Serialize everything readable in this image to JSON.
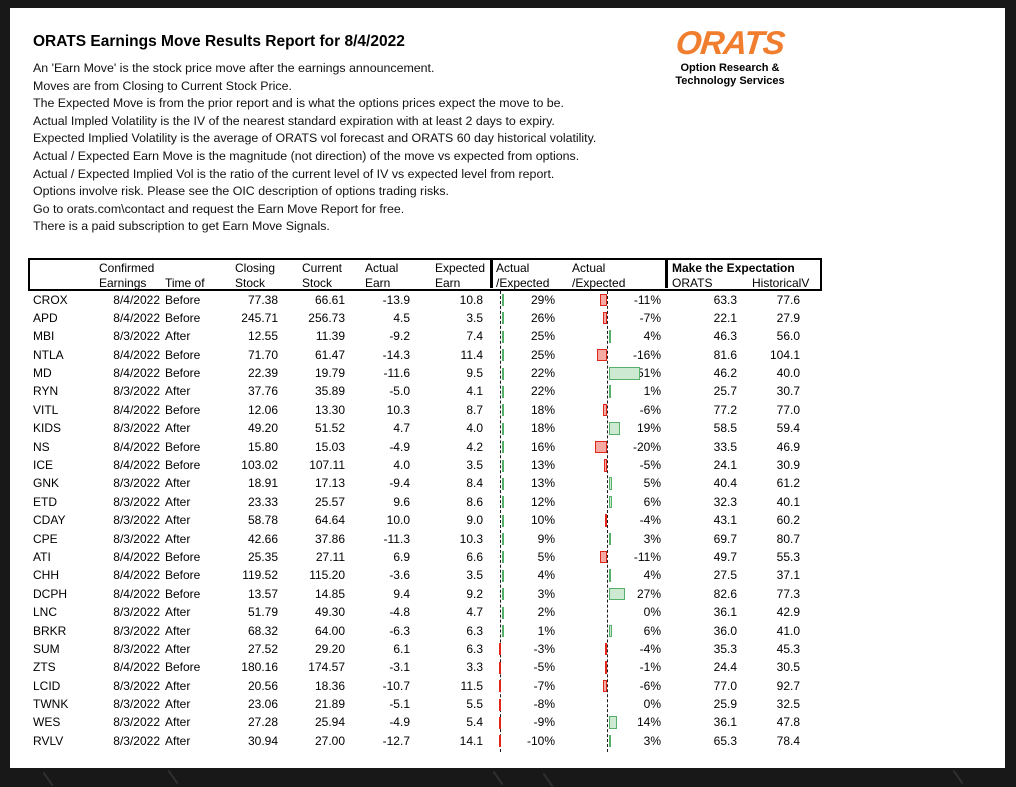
{
  "page": {
    "title": "ORATS Earnings Move Results Report for 8/4/2022",
    "description_lines": [
      "An 'Earn Move' is the stock price move after the earnings announcement.",
      "Moves are from Closing to Current Stock Price.",
      "The Expected Move is from the prior report and is what the options prices expect the move to be.",
      "Actual Impled Volatility is the IV of the nearest standard expiration with at least 2 days to expiry.",
      "Expected Implied Volatility is the average of ORATS vol forecast and ORATS 60 day historical volatility.",
      "Actual / Expected Earn Move is the magnitude (not direction) of the move vs expected from options.",
      "Actual / Expected Implied Vol is the ratio of the current level of IV vs expected level from report.",
      "Options involve risk. Please see the OIC description of options trading risks.",
      "Go to orats.com\\contact and request the Earn Move Report for free.",
      "There is a paid subscription to get Earn Move Signals."
    ]
  },
  "logo": {
    "wordmark": "ORATS",
    "subtitle_line1": "Option Research &",
    "subtitle_line2": "Technology Services"
  },
  "colors": {
    "logo_orange": "#F07E2E",
    "bar_green_border": "#55B169",
    "bar_green_fill": "#CDE9D2",
    "bar_red_border": "#E1251B",
    "bar_red_fill": "#F5ABA4"
  },
  "table": {
    "headers": {
      "confirmed": "Confirmed",
      "earnings": "Earnings",
      "time_of": "Time of",
      "closing": "Closing",
      "current": "Current",
      "actual": "Actual",
      "expected": "Expected",
      "stock": "Stock",
      "earn": "Earn",
      "actual_expected_line1": "Actual",
      "actual_expected_line2": "/Expected",
      "make_expectation": "Make the Expectation",
      "orats": "ORATS",
      "historical": "HistoricalV"
    },
    "rows": [
      {
        "ticker": "CROX",
        "date": "8/4/2022",
        "time": "Before",
        "closing": "77.38",
        "current": "66.61",
        "actual_earn": "-13.9",
        "expected_earn": "10.8",
        "move_vs_expected_pct": 29,
        "iv_vs_expected_pct": -11,
        "orats": "63.3",
        "historical": "77.6"
      },
      {
        "ticker": "APD",
        "date": "8/4/2022",
        "time": "Before",
        "closing": "245.71",
        "current": "256.73",
        "actual_earn": "4.5",
        "expected_earn": "3.5",
        "move_vs_expected_pct": 26,
        "iv_vs_expected_pct": -7,
        "orats": "22.1",
        "historical": "27.9"
      },
      {
        "ticker": "MBI",
        "date": "8/3/2022",
        "time": "After",
        "closing": "12.55",
        "current": "11.39",
        "actual_earn": "-9.2",
        "expected_earn": "7.4",
        "move_vs_expected_pct": 25,
        "iv_vs_expected_pct": 4,
        "orats": "46.3",
        "historical": "56.0"
      },
      {
        "ticker": "NTLA",
        "date": "8/4/2022",
        "time": "Before",
        "closing": "71.70",
        "current": "61.47",
        "actual_earn": "-14.3",
        "expected_earn": "11.4",
        "move_vs_expected_pct": 25,
        "iv_vs_expected_pct": -16,
        "orats": "81.6",
        "historical": "104.1"
      },
      {
        "ticker": "MD",
        "date": "8/4/2022",
        "time": "Before",
        "closing": "22.39",
        "current": "19.79",
        "actual_earn": "-11.6",
        "expected_earn": "9.5",
        "move_vs_expected_pct": 22,
        "iv_vs_expected_pct": 51,
        "orats": "46.2",
        "historical": "40.0"
      },
      {
        "ticker": "RYN",
        "date": "8/3/2022",
        "time": "After",
        "closing": "37.76",
        "current": "35.89",
        "actual_earn": "-5.0",
        "expected_earn": "4.1",
        "move_vs_expected_pct": 22,
        "iv_vs_expected_pct": 1,
        "orats": "25.7",
        "historical": "30.7"
      },
      {
        "ticker": "VITL",
        "date": "8/4/2022",
        "time": "Before",
        "closing": "12.06",
        "current": "13.30",
        "actual_earn": "10.3",
        "expected_earn": "8.7",
        "move_vs_expected_pct": 18,
        "iv_vs_expected_pct": -6,
        "orats": "77.2",
        "historical": "77.0"
      },
      {
        "ticker": "KIDS",
        "date": "8/3/2022",
        "time": "After",
        "closing": "49.20",
        "current": "51.52",
        "actual_earn": "4.7",
        "expected_earn": "4.0",
        "move_vs_expected_pct": 18,
        "iv_vs_expected_pct": 19,
        "orats": "58.5",
        "historical": "59.4"
      },
      {
        "ticker": "NS",
        "date": "8/4/2022",
        "time": "Before",
        "closing": "15.80",
        "current": "15.03",
        "actual_earn": "-4.9",
        "expected_earn": "4.2",
        "move_vs_expected_pct": 16,
        "iv_vs_expected_pct": -20,
        "orats": "33.5",
        "historical": "46.9"
      },
      {
        "ticker": "ICE",
        "date": "8/4/2022",
        "time": "Before",
        "closing": "103.02",
        "current": "107.11",
        "actual_earn": "4.0",
        "expected_earn": "3.5",
        "move_vs_expected_pct": 13,
        "iv_vs_expected_pct": -5,
        "orats": "24.1",
        "historical": "30.9"
      },
      {
        "ticker": "GNK",
        "date": "8/3/2022",
        "time": "After",
        "closing": "18.91",
        "current": "17.13",
        "actual_earn": "-9.4",
        "expected_earn": "8.4",
        "move_vs_expected_pct": 13,
        "iv_vs_expected_pct": 5,
        "orats": "40.4",
        "historical": "61.2"
      },
      {
        "ticker": "ETD",
        "date": "8/3/2022",
        "time": "After",
        "closing": "23.33",
        "current": "25.57",
        "actual_earn": "9.6",
        "expected_earn": "8.6",
        "move_vs_expected_pct": 12,
        "iv_vs_expected_pct": 6,
        "orats": "32.3",
        "historical": "40.1"
      },
      {
        "ticker": "CDAY",
        "date": "8/3/2022",
        "time": "After",
        "closing": "58.78",
        "current": "64.64",
        "actual_earn": "10.0",
        "expected_earn": "9.0",
        "move_vs_expected_pct": 10,
        "iv_vs_expected_pct": -4,
        "orats": "43.1",
        "historical": "60.2"
      },
      {
        "ticker": "CPE",
        "date": "8/3/2022",
        "time": "After",
        "closing": "42.66",
        "current": "37.86",
        "actual_earn": "-11.3",
        "expected_earn": "10.3",
        "move_vs_expected_pct": 9,
        "iv_vs_expected_pct": 3,
        "orats": "69.7",
        "historical": "80.7"
      },
      {
        "ticker": "ATI",
        "date": "8/4/2022",
        "time": "Before",
        "closing": "25.35",
        "current": "27.11",
        "actual_earn": "6.9",
        "expected_earn": "6.6",
        "move_vs_expected_pct": 5,
        "iv_vs_expected_pct": -11,
        "orats": "49.7",
        "historical": "55.3"
      },
      {
        "ticker": "CHH",
        "date": "8/4/2022",
        "time": "Before",
        "closing": "119.52",
        "current": "115.20",
        "actual_earn": "-3.6",
        "expected_earn": "3.5",
        "move_vs_expected_pct": 4,
        "iv_vs_expected_pct": 4,
        "orats": "27.5",
        "historical": "37.1"
      },
      {
        "ticker": "DCPH",
        "date": "8/4/2022",
        "time": "Before",
        "closing": "13.57",
        "current": "14.85",
        "actual_earn": "9.4",
        "expected_earn": "9.2",
        "move_vs_expected_pct": 3,
        "iv_vs_expected_pct": 27,
        "orats": "82.6",
        "historical": "77.3"
      },
      {
        "ticker": "LNC",
        "date": "8/3/2022",
        "time": "After",
        "closing": "51.79",
        "current": "49.30",
        "actual_earn": "-4.8",
        "expected_earn": "4.7",
        "move_vs_expected_pct": 2,
        "iv_vs_expected_pct": 0,
        "orats": "36.1",
        "historical": "42.9"
      },
      {
        "ticker": "BRKR",
        "date": "8/3/2022",
        "time": "After",
        "closing": "68.32",
        "current": "64.00",
        "actual_earn": "-6.3",
        "expected_earn": "6.3",
        "move_vs_expected_pct": 1,
        "iv_vs_expected_pct": 6,
        "orats": "36.0",
        "historical": "41.0"
      },
      {
        "ticker": "SUM",
        "date": "8/3/2022",
        "time": "After",
        "closing": "27.52",
        "current": "29.20",
        "actual_earn": "6.1",
        "expected_earn": "6.3",
        "move_vs_expected_pct": -3,
        "iv_vs_expected_pct": -4,
        "orats": "35.3",
        "historical": "45.3"
      },
      {
        "ticker": "ZTS",
        "date": "8/4/2022",
        "time": "Before",
        "closing": "180.16",
        "current": "174.57",
        "actual_earn": "-3.1",
        "expected_earn": "3.3",
        "move_vs_expected_pct": -5,
        "iv_vs_expected_pct": -1,
        "orats": "24.4",
        "historical": "30.5"
      },
      {
        "ticker": "LCID",
        "date": "8/3/2022",
        "time": "After",
        "closing": "20.56",
        "current": "18.36",
        "actual_earn": "-10.7",
        "expected_earn": "11.5",
        "move_vs_expected_pct": -7,
        "iv_vs_expected_pct": -6,
        "orats": "77.0",
        "historical": "92.7"
      },
      {
        "ticker": "TWNK",
        "date": "8/3/2022",
        "time": "After",
        "closing": "23.06",
        "current": "21.89",
        "actual_earn": "-5.1",
        "expected_earn": "5.5",
        "move_vs_expected_pct": -8,
        "iv_vs_expected_pct": 0,
        "orats": "25.9",
        "historical": "32.5"
      },
      {
        "ticker": "WES",
        "date": "8/3/2022",
        "time": "After",
        "closing": "27.28",
        "current": "25.94",
        "actual_earn": "-4.9",
        "expected_earn": "5.4",
        "move_vs_expected_pct": -9,
        "iv_vs_expected_pct": 14,
        "orats": "36.1",
        "historical": "47.8"
      },
      {
        "ticker": "RVLV",
        "date": "8/3/2022",
        "time": "After",
        "closing": "30.94",
        "current": "27.00",
        "actual_earn": "-12.7",
        "expected_earn": "14.1",
        "move_vs_expected_pct": -10,
        "iv_vs_expected_pct": 3,
        "orats": "65.3",
        "historical": "78.4"
      }
    ]
  }
}
